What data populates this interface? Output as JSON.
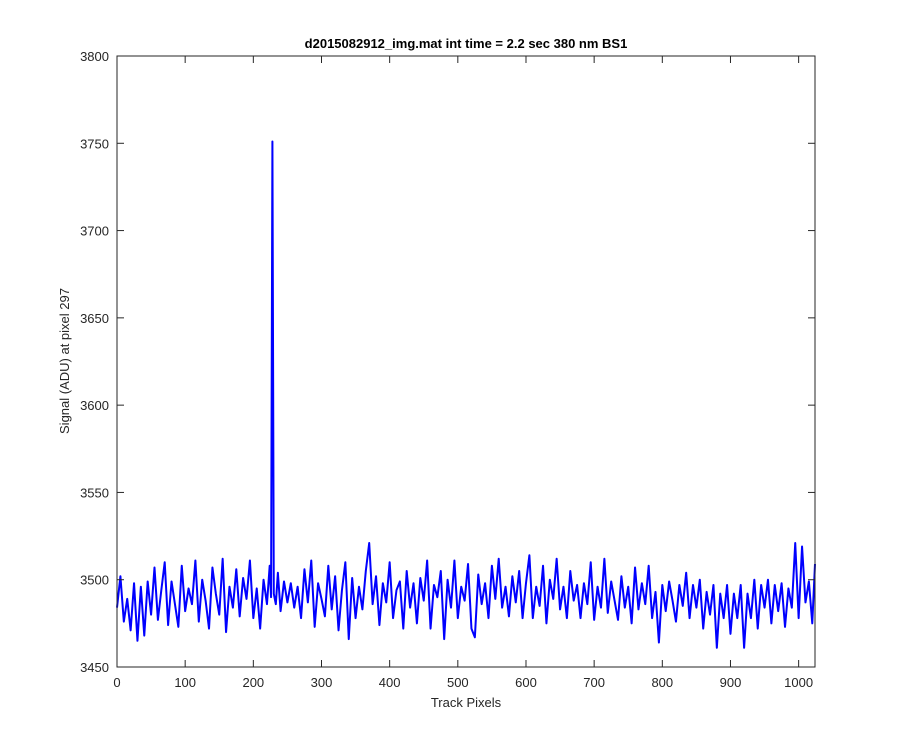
{
  "chart_data": {
    "type": "line",
    "title": "d2015082912_img.mat int time = 2.2 sec  380 nm BS1",
    "xlabel": "Track Pixels",
    "ylabel": "Signal (ADU) at pixel 297",
    "xlim": [
      0,
      1024
    ],
    "ylim": [
      3450,
      3800
    ],
    "xticks": [
      0,
      100,
      200,
      300,
      400,
      500,
      600,
      700,
      800,
      900,
      1000
    ],
    "yticks": [
      3450,
      3500,
      3550,
      3600,
      3650,
      3700,
      3750,
      3800
    ],
    "grid": false,
    "series": [
      {
        "color": "#0000ff",
        "description": "noisy baseline around 3490 ADU with a single spike to ~3751 ADU near track pixel 228",
        "baseline": 3491,
        "noise_range": [
          3460,
          3522
        ],
        "spike": {
          "x": 228,
          "y": 3751
        },
        "points": [
          [
            0,
            3484
          ],
          [
            5,
            3502
          ],
          [
            10,
            3476
          ],
          [
            15,
            3489
          ],
          [
            20,
            3471
          ],
          [
            25,
            3498
          ],
          [
            30,
            3465
          ],
          [
            35,
            3496
          ],
          [
            40,
            3468
          ],
          [
            45,
            3499
          ],
          [
            50,
            3480
          ],
          [
            55,
            3507
          ],
          [
            60,
            3477
          ],
          [
            65,
            3494
          ],
          [
            70,
            3510
          ],
          [
            75,
            3474
          ],
          [
            80,
            3499
          ],
          [
            85,
            3486
          ],
          [
            90,
            3473
          ],
          [
            95,
            3508
          ],
          [
            100,
            3482
          ],
          [
            105,
            3495
          ],
          [
            110,
            3486
          ],
          [
            115,
            3511
          ],
          [
            120,
            3476
          ],
          [
            125,
            3500
          ],
          [
            130,
            3488
          ],
          [
            135,
            3472
          ],
          [
            140,
            3507
          ],
          [
            145,
            3492
          ],
          [
            150,
            3480
          ],
          [
            155,
            3512
          ],
          [
            160,
            3470
          ],
          [
            165,
            3496
          ],
          [
            170,
            3484
          ],
          [
            175,
            3506
          ],
          [
            180,
            3479
          ],
          [
            185,
            3501
          ],
          [
            190,
            3489
          ],
          [
            195,
            3511
          ],
          [
            200,
            3478
          ],
          [
            205,
            3495
          ],
          [
            210,
            3472
          ],
          [
            215,
            3500
          ],
          [
            220,
            3486
          ],
          [
            224,
            3508
          ],
          [
            226,
            3490
          ],
          [
            228,
            3751
          ],
          [
            230,
            3492
          ],
          [
            233,
            3486
          ],
          [
            236,
            3504
          ],
          [
            240,
            3482
          ],
          [
            245,
            3499
          ],
          [
            250,
            3487
          ],
          [
            255,
            3498
          ],
          [
            260,
            3484
          ],
          [
            265,
            3496
          ],
          [
            270,
            3478
          ],
          [
            275,
            3506
          ],
          [
            280,
            3487
          ],
          [
            285,
            3511
          ],
          [
            290,
            3473
          ],
          [
            295,
            3498
          ],
          [
            300,
            3489
          ],
          [
            305,
            3479
          ],
          [
            310,
            3508
          ],
          [
            315,
            3483
          ],
          [
            320,
            3502
          ],
          [
            325,
            3471
          ],
          [
            330,
            3494
          ],
          [
            335,
            3510
          ],
          [
            340,
            3466
          ],
          [
            345,
            3501
          ],
          [
            350,
            3478
          ],
          [
            355,
            3496
          ],
          [
            360,
            3483
          ],
          [
            365,
            3505
          ],
          [
            370,
            3521
          ],
          [
            375,
            3486
          ],
          [
            380,
            3502
          ],
          [
            385,
            3474
          ],
          [
            390,
            3498
          ],
          [
            395,
            3487
          ],
          [
            400,
            3510
          ],
          [
            405,
            3478
          ],
          [
            410,
            3494
          ],
          [
            415,
            3499
          ],
          [
            420,
            3472
          ],
          [
            425,
            3505
          ],
          [
            430,
            3484
          ],
          [
            435,
            3498
          ],
          [
            440,
            3475
          ],
          [
            445,
            3501
          ],
          [
            450,
            3488
          ],
          [
            455,
            3511
          ],
          [
            460,
            3472
          ],
          [
            465,
            3497
          ],
          [
            470,
            3490
          ],
          [
            475,
            3505
          ],
          [
            480,
            3466
          ],
          [
            485,
            3500
          ],
          [
            490,
            3484
          ],
          [
            495,
            3511
          ],
          [
            500,
            3478
          ],
          [
            505,
            3496
          ],
          [
            510,
            3488
          ],
          [
            515,
            3509
          ],
          [
            520,
            3472
          ],
          [
            525,
            3467
          ],
          [
            530,
            3503
          ],
          [
            535,
            3486
          ],
          [
            540,
            3498
          ],
          [
            545,
            3478
          ],
          [
            550,
            3508
          ],
          [
            555,
            3489
          ],
          [
            560,
            3512
          ],
          [
            565,
            3484
          ],
          [
            570,
            3496
          ],
          [
            575,
            3479
          ],
          [
            580,
            3502
          ],
          [
            585,
            3487
          ],
          [
            590,
            3505
          ],
          [
            595,
            3478
          ],
          [
            600,
            3498
          ],
          [
            605,
            3514
          ],
          [
            610,
            3478
          ],
          [
            615,
            3496
          ],
          [
            620,
            3485
          ],
          [
            625,
            3508
          ],
          [
            630,
            3475
          ],
          [
            635,
            3500
          ],
          [
            640,
            3489
          ],
          [
            645,
            3512
          ],
          [
            650,
            3483
          ],
          [
            655,
            3496
          ],
          [
            660,
            3478
          ],
          [
            665,
            3505
          ],
          [
            670,
            3488
          ],
          [
            675,
            3497
          ],
          [
            680,
            3478
          ],
          [
            685,
            3498
          ],
          [
            690,
            3486
          ],
          [
            695,
            3510
          ],
          [
            700,
            3477
          ],
          [
            705,
            3496
          ],
          [
            710,
            3484
          ],
          [
            715,
            3512
          ],
          [
            720,
            3481
          ],
          [
            725,
            3499
          ],
          [
            730,
            3488
          ],
          [
            735,
            3477
          ],
          [
            740,
            3502
          ],
          [
            745,
            3484
          ],
          [
            750,
            3496
          ],
          [
            755,
            3475
          ],
          [
            760,
            3507
          ],
          [
            765,
            3483
          ],
          [
            770,
            3498
          ],
          [
            775,
            3486
          ],
          [
            780,
            3508
          ],
          [
            785,
            3478
          ],
          [
            790,
            3493
          ],
          [
            795,
            3464
          ],
          [
            800,
            3497
          ],
          [
            805,
            3482
          ],
          [
            810,
            3499
          ],
          [
            815,
            3488
          ],
          [
            820,
            3476
          ],
          [
            825,
            3497
          ],
          [
            830,
            3485
          ],
          [
            835,
            3504
          ],
          [
            840,
            3478
          ],
          [
            845,
            3497
          ],
          [
            850,
            3484
          ],
          [
            855,
            3500
          ],
          [
            860,
            3472
          ],
          [
            865,
            3493
          ],
          [
            870,
            3480
          ],
          [
            875,
            3497
          ],
          [
            880,
            3461
          ],
          [
            885,
            3492
          ],
          [
            890,
            3478
          ],
          [
            895,
            3497
          ],
          [
            900,
            3469
          ],
          [
            905,
            3492
          ],
          [
            910,
            3478
          ],
          [
            915,
            3497
          ],
          [
            920,
            3461
          ],
          [
            925,
            3492
          ],
          [
            930,
            3478
          ],
          [
            935,
            3500
          ],
          [
            940,
            3472
          ],
          [
            945,
            3497
          ],
          [
            950,
            3484
          ],
          [
            955,
            3500
          ],
          [
            960,
            3475
          ],
          [
            965,
            3497
          ],
          [
            970,
            3482
          ],
          [
            975,
            3498
          ],
          [
            980,
            3473
          ],
          [
            985,
            3495
          ],
          [
            990,
            3484
          ],
          [
            995,
            3521
          ],
          [
            1000,
            3478
          ],
          [
            1005,
            3519
          ],
          [
            1010,
            3487
          ],
          [
            1015,
            3499
          ],
          [
            1020,
            3475
          ],
          [
            1024,
            3509
          ]
        ]
      }
    ]
  }
}
